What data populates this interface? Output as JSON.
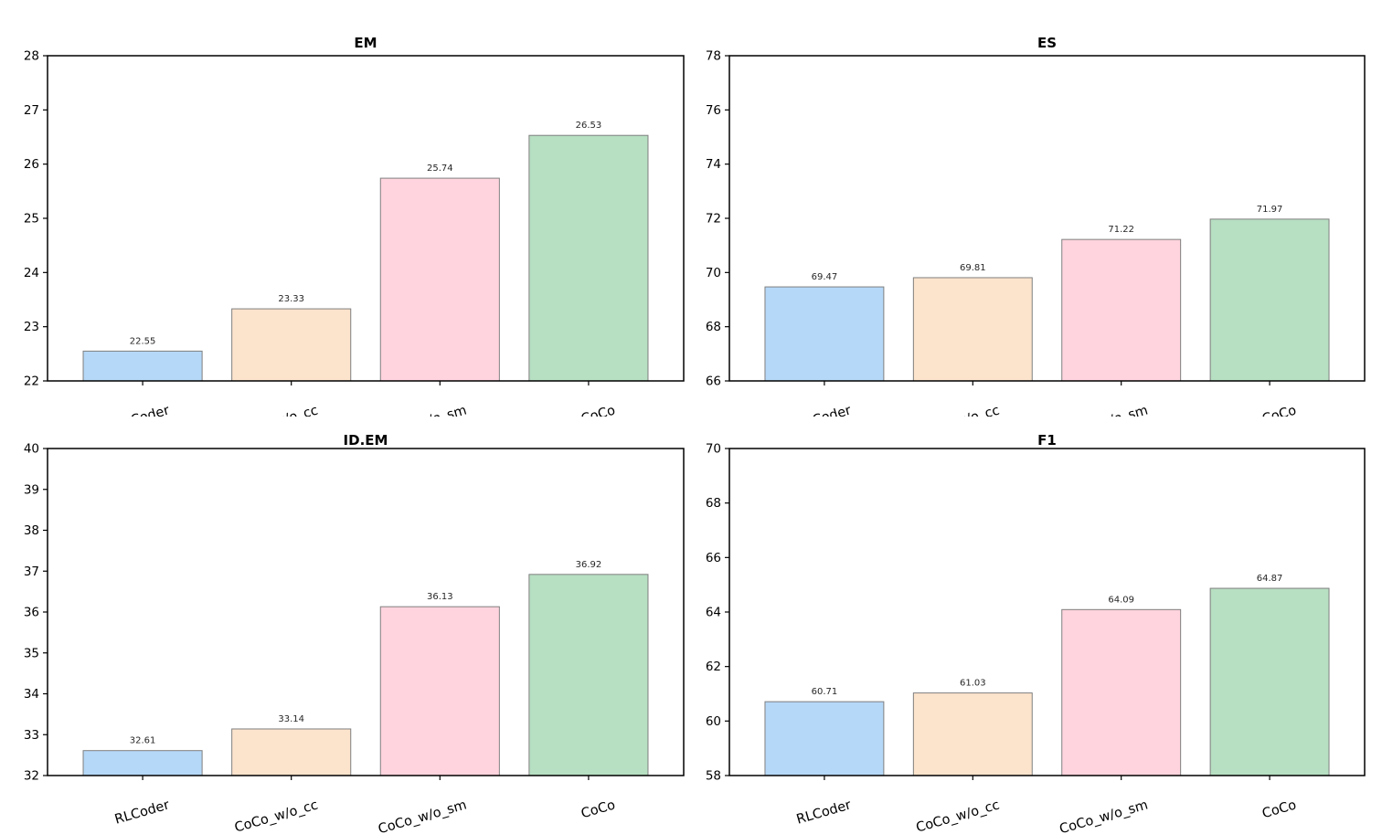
{
  "figure": {
    "background": "#ffffff"
  },
  "palette": {
    "bar_colors": [
      "#b5d8f8",
      "#fce3cc",
      "#ffd4de",
      "#b7dfc2"
    ],
    "bar_edge_color": "#7f7f7f",
    "axis_color": "#000000",
    "tick_label_color": "#000000",
    "value_label_color": "#262626"
  },
  "chart_data": [
    {
      "type": "bar",
      "title": "EM",
      "categories": [
        "RLCoder",
        "CoCo_w/o_cc",
        "CoCo_w/o_sm",
        "CoCo"
      ],
      "values": [
        22.55,
        23.33,
        25.74,
        26.53
      ],
      "value_labels": [
        "22.55",
        "23.33",
        "25.74",
        "26.53"
      ],
      "ylim": [
        22,
        28
      ],
      "yticks": [
        22,
        23,
        24,
        25,
        26,
        27,
        28
      ],
      "grid": false,
      "legend_position": null
    },
    {
      "type": "bar",
      "title": "ES",
      "categories": [
        "RLCoder",
        "CoCo_w/o_cc",
        "CoCo_w/o_sm",
        "CoCo"
      ],
      "values": [
        69.47,
        69.81,
        71.22,
        71.97
      ],
      "value_labels": [
        "69.47",
        "69.81",
        "71.22",
        "71.97"
      ],
      "ylim": [
        66,
        78
      ],
      "yticks": [
        66,
        68,
        70,
        72,
        74,
        76,
        78
      ],
      "grid": false,
      "legend_position": null
    },
    {
      "type": "bar",
      "title": "ID.EM",
      "categories": [
        "RLCoder",
        "CoCo_w/o_cc",
        "CoCo_w/o_sm",
        "CoCo"
      ],
      "values": [
        32.61,
        33.14,
        36.13,
        36.92
      ],
      "value_labels": [
        "32.61",
        "33.14",
        "36.13",
        "36.92"
      ],
      "ylim": [
        32,
        40
      ],
      "yticks": [
        32,
        33,
        34,
        35,
        36,
        37,
        38,
        39,
        40
      ],
      "grid": false,
      "legend_position": null
    },
    {
      "type": "bar",
      "title": "F1",
      "categories": [
        "RLCoder",
        "CoCo_w/o_cc",
        "CoCo_w/o_sm",
        "CoCo"
      ],
      "values": [
        60.71,
        61.03,
        64.09,
        64.87
      ],
      "value_labels": [
        "60.71",
        "61.03",
        "64.09",
        "64.87"
      ],
      "ylim": [
        58,
        70
      ],
      "yticks": [
        58,
        60,
        62,
        64,
        66,
        68,
        70
      ],
      "grid": false,
      "legend_position": null
    }
  ]
}
